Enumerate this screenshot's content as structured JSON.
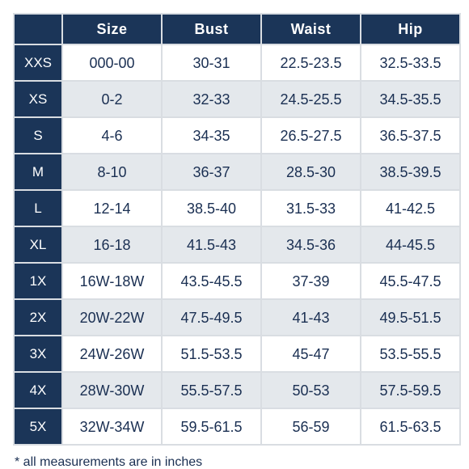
{
  "table": {
    "headers": [
      "",
      "Size",
      "Bust",
      "Waist",
      "Hip"
    ],
    "rows": [
      {
        "label": "XXS",
        "size": "000-00",
        "bust": "30-31",
        "waist": "22.5-23.5",
        "hip": "32.5-33.5"
      },
      {
        "label": "XS",
        "size": "0-2",
        "bust": "32-33",
        "waist": "24.5-25.5",
        "hip": "34.5-35.5"
      },
      {
        "label": "S",
        "size": "4-6",
        "bust": "34-35",
        "waist": "26.5-27.5",
        "hip": "36.5-37.5"
      },
      {
        "label": "M",
        "size": "8-10",
        "bust": "36-37",
        "waist": "28.5-30",
        "hip": "38.5-39.5"
      },
      {
        "label": "L",
        "size": "12-14",
        "bust": "38.5-40",
        "waist": "31.5-33",
        "hip": "41-42.5"
      },
      {
        "label": "XL",
        "size": "16-18",
        "bust": "41.5-43",
        "waist": "34.5-36",
        "hip": "44-45.5"
      },
      {
        "label": "1X",
        "size": "16W-18W",
        "bust": "43.5-45.5",
        "waist": "37-39",
        "hip": "45.5-47.5"
      },
      {
        "label": "2X",
        "size": "20W-22W",
        "bust": "47.5-49.5",
        "waist": "41-43",
        "hip": "49.5-51.5"
      },
      {
        "label": "3X",
        "size": "24W-26W",
        "bust": "51.5-53.5",
        "waist": "45-47",
        "hip": "53.5-55.5"
      },
      {
        "label": "4X",
        "size": "28W-30W",
        "bust": "55.5-57.5",
        "waist": "50-53",
        "hip": "57.5-59.5"
      },
      {
        "label": "5X",
        "size": "32W-34W",
        "bust": "59.5-61.5",
        "waist": "56-59",
        "hip": "61.5-63.5"
      }
    ]
  },
  "footnote": "* all measurements are in inches",
  "colors": {
    "header_bg": "#1b3558",
    "header_text": "#ffffff",
    "body_text": "#1a2f52",
    "row_alt_bg": "#e4e8ec",
    "grid": "#d9dde2"
  }
}
